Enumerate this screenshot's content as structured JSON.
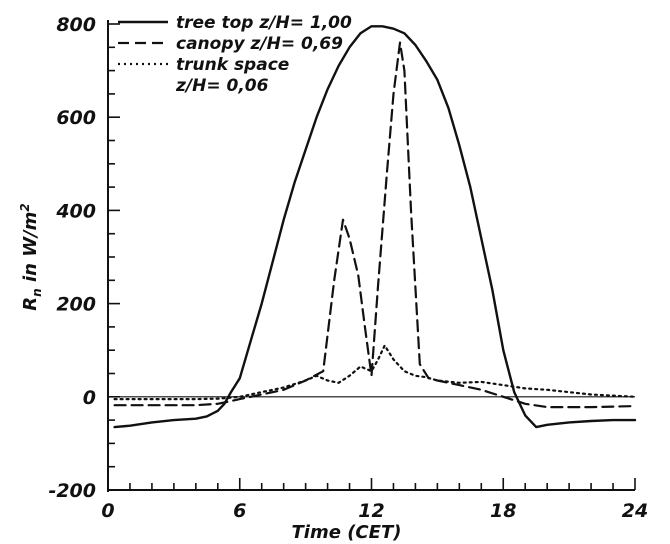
{
  "chart_data": {
    "type": "line",
    "title": "",
    "xlabel": "Time (CET)",
    "ylabel": "R_n in W/m²",
    "ylabel_parts": {
      "main": "R",
      "sub": "n",
      "rest": " in W/m",
      "sup": "2"
    },
    "xlim": [
      0,
      24
    ],
    "ylim": [
      -200,
      800
    ],
    "xticks": [
      0,
      6,
      12,
      18,
      24
    ],
    "xtick_labels": [
      "0",
      "6",
      "12",
      "18",
      "24"
    ],
    "yticks": [
      -200,
      0,
      200,
      400,
      600,
      800
    ],
    "ytick_labels": [
      "-200",
      "0",
      "200",
      "400",
      "600",
      "800"
    ],
    "grid": false,
    "legend_position": "top-left",
    "series": [
      {
        "name": "tree top",
        "legend_label": "tree top z/H= 1,00",
        "style": "solid",
        "color": "#111111",
        "x": [
          0.3,
          1,
          2,
          3,
          4,
          4.5,
          5,
          5.3,
          5.6,
          6,
          6.5,
          7,
          7.5,
          8,
          8.5,
          9,
          9.5,
          10,
          10.5,
          11,
          11.5,
          12,
          12.5,
          13,
          13.5,
          14,
          14.5,
          15,
          15.5,
          16,
          16.5,
          17,
          17.5,
          18,
          18.5,
          19,
          19.5,
          20,
          21,
          22,
          23,
          24
        ],
        "y": [
          -65,
          -62,
          -55,
          -50,
          -47,
          -42,
          -30,
          -15,
          10,
          40,
          120,
          200,
          290,
          380,
          460,
          530,
          600,
          660,
          710,
          750,
          780,
          795,
          795,
          790,
          780,
          755,
          720,
          680,
          620,
          540,
          450,
          340,
          230,
          100,
          10,
          -40,
          -65,
          -60,
          -55,
          -52,
          -50,
          -50
        ]
      },
      {
        "name": "canopy",
        "legend_label": "canopy z/H= 0,69",
        "style": "dashed",
        "color": "#111111",
        "x": [
          0.3,
          2,
          4,
          5,
          5.5,
          6,
          7,
          8,
          9,
          9.8,
          10.3,
          10.7,
          11.0,
          11.4,
          11.7,
          12.0,
          12.3,
          12.7,
          13.0,
          13.3,
          13.5,
          13.8,
          14.2,
          14.6,
          15,
          16,
          17,
          18,
          19,
          20,
          22,
          24
        ],
        "y": [
          -18,
          -18,
          -18,
          -15,
          -10,
          -5,
          5,
          15,
          35,
          55,
          250,
          380,
          340,
          260,
          150,
          45,
          240,
          480,
          650,
          760,
          700,
          400,
          70,
          40,
          35,
          25,
          15,
          0,
          -15,
          -22,
          -22,
          -20
        ]
      },
      {
        "name": "trunk space",
        "legend_label": "trunk space z/H= 0,06",
        "style": "dotted",
        "color": "#111111",
        "x": [
          0.3,
          2,
          4,
          5,
          6,
          7,
          8,
          9,
          9.5,
          10,
          10.5,
          11,
          11.5,
          12,
          12.3,
          12.6,
          13,
          13.5,
          14,
          14.5,
          15,
          16,
          17,
          18,
          19,
          20,
          22,
          24
        ],
        "y": [
          -5,
          -5,
          -5,
          -4,
          0,
          10,
          20,
          35,
          45,
          35,
          30,
          45,
          65,
          55,
          80,
          110,
          80,
          55,
          45,
          42,
          35,
          30,
          32,
          25,
          18,
          15,
          5,
          0
        ]
      }
    ]
  }
}
